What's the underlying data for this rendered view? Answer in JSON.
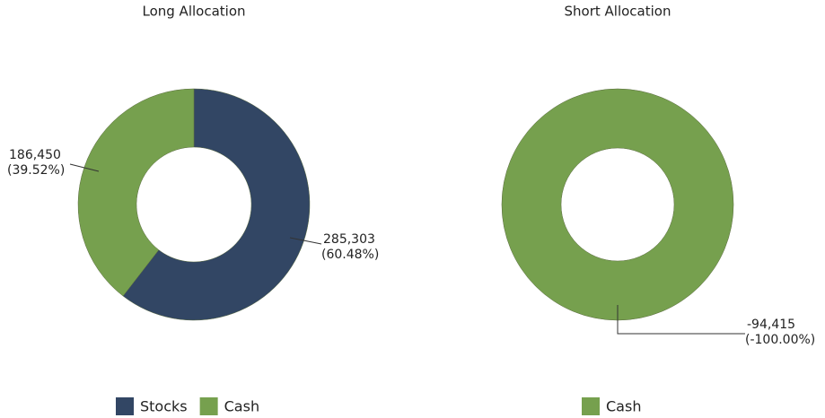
{
  "chart_data": [
    {
      "type": "donut",
      "title": "Long Allocation",
      "categories": [
        "Stocks",
        "Cash"
      ],
      "values": [
        285303,
        186450
      ],
      "value_labels": [
        "285,303",
        "186,450"
      ],
      "percents": [
        60.48,
        39.52
      ],
      "percent_labels": [
        "(60.48%)",
        "(39.52%)"
      ],
      "colors": [
        "#324664",
        "#76a04e"
      ]
    },
    {
      "type": "donut",
      "title": "Short Allocation",
      "categories": [
        "Cash"
      ],
      "values": [
        -94415
      ],
      "value_labels": [
        "-94,415"
      ],
      "percents": [
        -100
      ],
      "percent_labels": [
        "(-100.00%)"
      ],
      "colors": [
        "#76a04e"
      ]
    }
  ]
}
